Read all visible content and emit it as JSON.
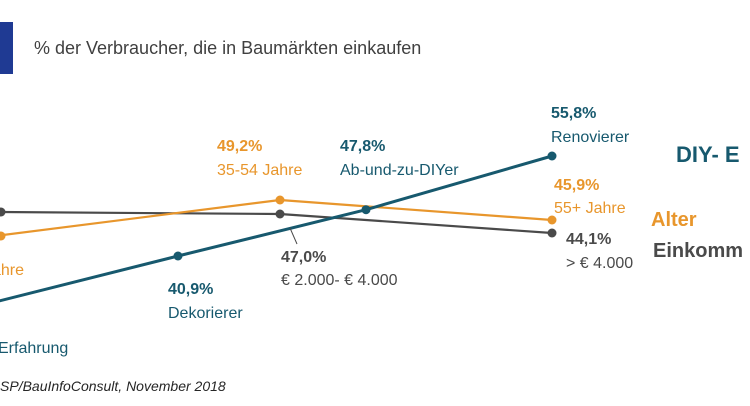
{
  "title": "% der Verbraucher, die in Baumärkten einkaufen",
  "source": "SP/BauInfoConsult, November 2018",
  "colors": {
    "accent": "#1f3a93",
    "diy": "#17596e",
    "alter": "#e8962c",
    "einkommen": "#4a4a4a",
    "text_dark": "#404040"
  },
  "chart_data": {
    "type": "line",
    "ylim": [
      39,
      57
    ],
    "grid": false,
    "legend": "right",
    "series": [
      {
        "name": "DIY- E",
        "color": "#17596e",
        "points": [
          {
            "x": 0,
            "value": null,
            "pct": "",
            "label": "Erfahrung"
          },
          {
            "x": 1,
            "value": 40.9,
            "pct": "40,9%",
            "label": "Dekorierer"
          },
          {
            "x": 2,
            "value": 47.8,
            "pct": "47,8%",
            "label": "Ab-und-zu-DIYer"
          },
          {
            "x": 3,
            "value": 55.8,
            "pct": "55,8%",
            "label": "Renovierer"
          }
        ]
      },
      {
        "name": "Alter",
        "color": "#e8962c",
        "points": [
          {
            "x": 0,
            "value": null,
            "pct": "",
            "label": "ahre"
          },
          {
            "x": 2,
            "value": 49.2,
            "pct": "49,2%",
            "label": "35-54 Jahre"
          },
          {
            "x": 3,
            "value": 45.9,
            "pct": "45,9%",
            "label": "55+ Jahre"
          }
        ]
      },
      {
        "name": "Einkomm",
        "color": "#4a4a4a",
        "points": [
          {
            "x": 0,
            "value": null
          },
          {
            "x": 2,
            "value": 47.0,
            "pct": "47,0%",
            "label": "€ 2.000- € 4.000"
          },
          {
            "x": 3,
            "value": 44.1,
            "pct": "44,1%",
            "label": "> € 4.000"
          }
        ]
      }
    ]
  }
}
